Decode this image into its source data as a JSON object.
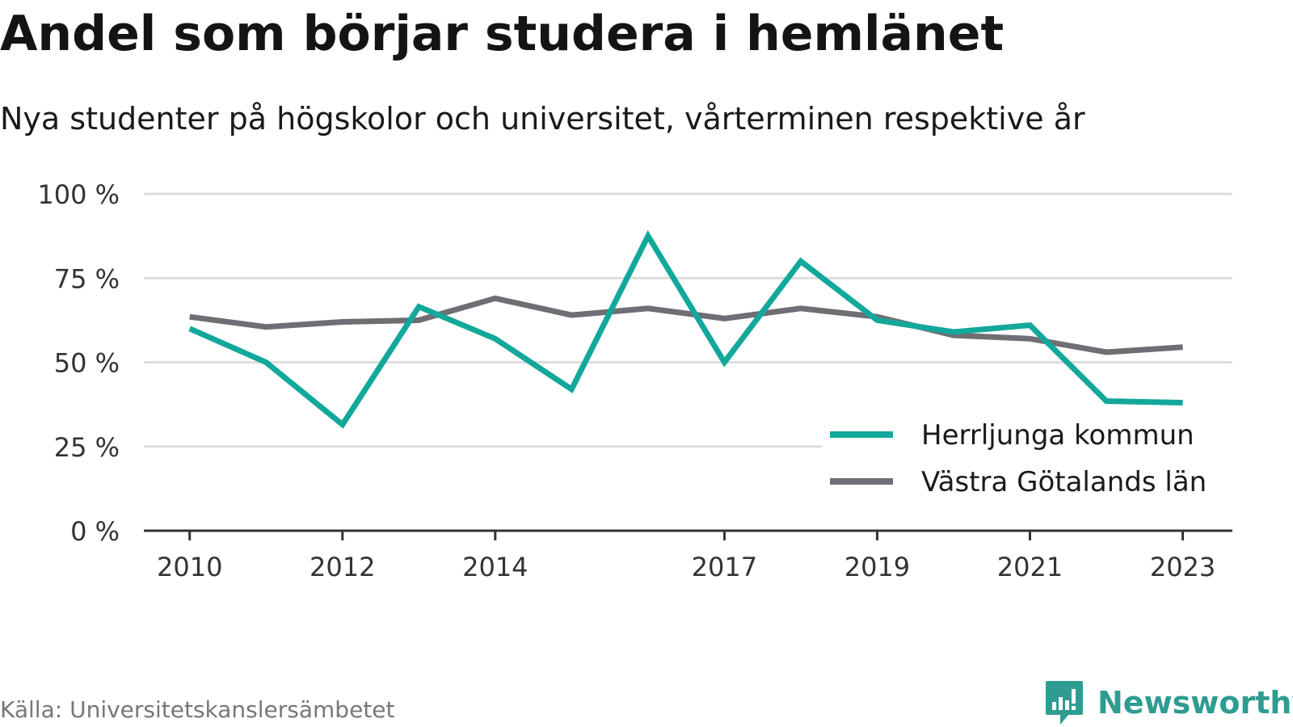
{
  "title": "Andel som börjar studera i hemlänet",
  "subtitle": "Nya studenter på högskolor och universitet, vårterminen respektive år",
  "source": "Källa: Universitetskanslersämbetet",
  "brand": {
    "name": "Newsworthy",
    "icon": "newsworthy-logo-icon",
    "color": "#2e9c91"
  },
  "chart_data": {
    "type": "line",
    "title": "Andel som börjar studera i hemlänet",
    "subtitle": "Nya studenter på högskolor och universitet, vårterminen respektive år",
    "x": [
      2010,
      2011,
      2012,
      2013,
      2014,
      2015,
      2016,
      2017,
      2018,
      2019,
      2020,
      2021,
      2022,
      2023
    ],
    "x_tick_values": [
      2010,
      2012,
      2014,
      2017,
      2019,
      2021,
      2023
    ],
    "x_tick_labels": [
      "2010",
      "2012",
      "2014",
      "2017",
      "2019",
      "2021",
      "2023"
    ],
    "y_tick_values": [
      0,
      25,
      50,
      75,
      100
    ],
    "y_tick_labels": [
      "0 %",
      "25 %",
      "50 %",
      "75 %",
      "100 %"
    ],
    "ylim": [
      0,
      100
    ],
    "xlim": [
      2009.4,
      2023.65
    ],
    "xlabel": "",
    "ylabel": "",
    "grid": true,
    "legend_position": "bottom-right",
    "series": [
      {
        "name": "Herrljunga kommun",
        "color": "#12a89b",
        "values": [
          60,
          50,
          31.5,
          66.5,
          57,
          42,
          87.5,
          50,
          80,
          62.5,
          59,
          61,
          38.5,
          38
        ]
      },
      {
        "name": "Västra Götalands län",
        "color": "#706e74",
        "values": [
          63.5,
          60.5,
          62,
          62.5,
          69,
          64,
          66,
          63,
          66,
          63.5,
          58,
          57,
          53,
          54.5
        ]
      }
    ]
  }
}
